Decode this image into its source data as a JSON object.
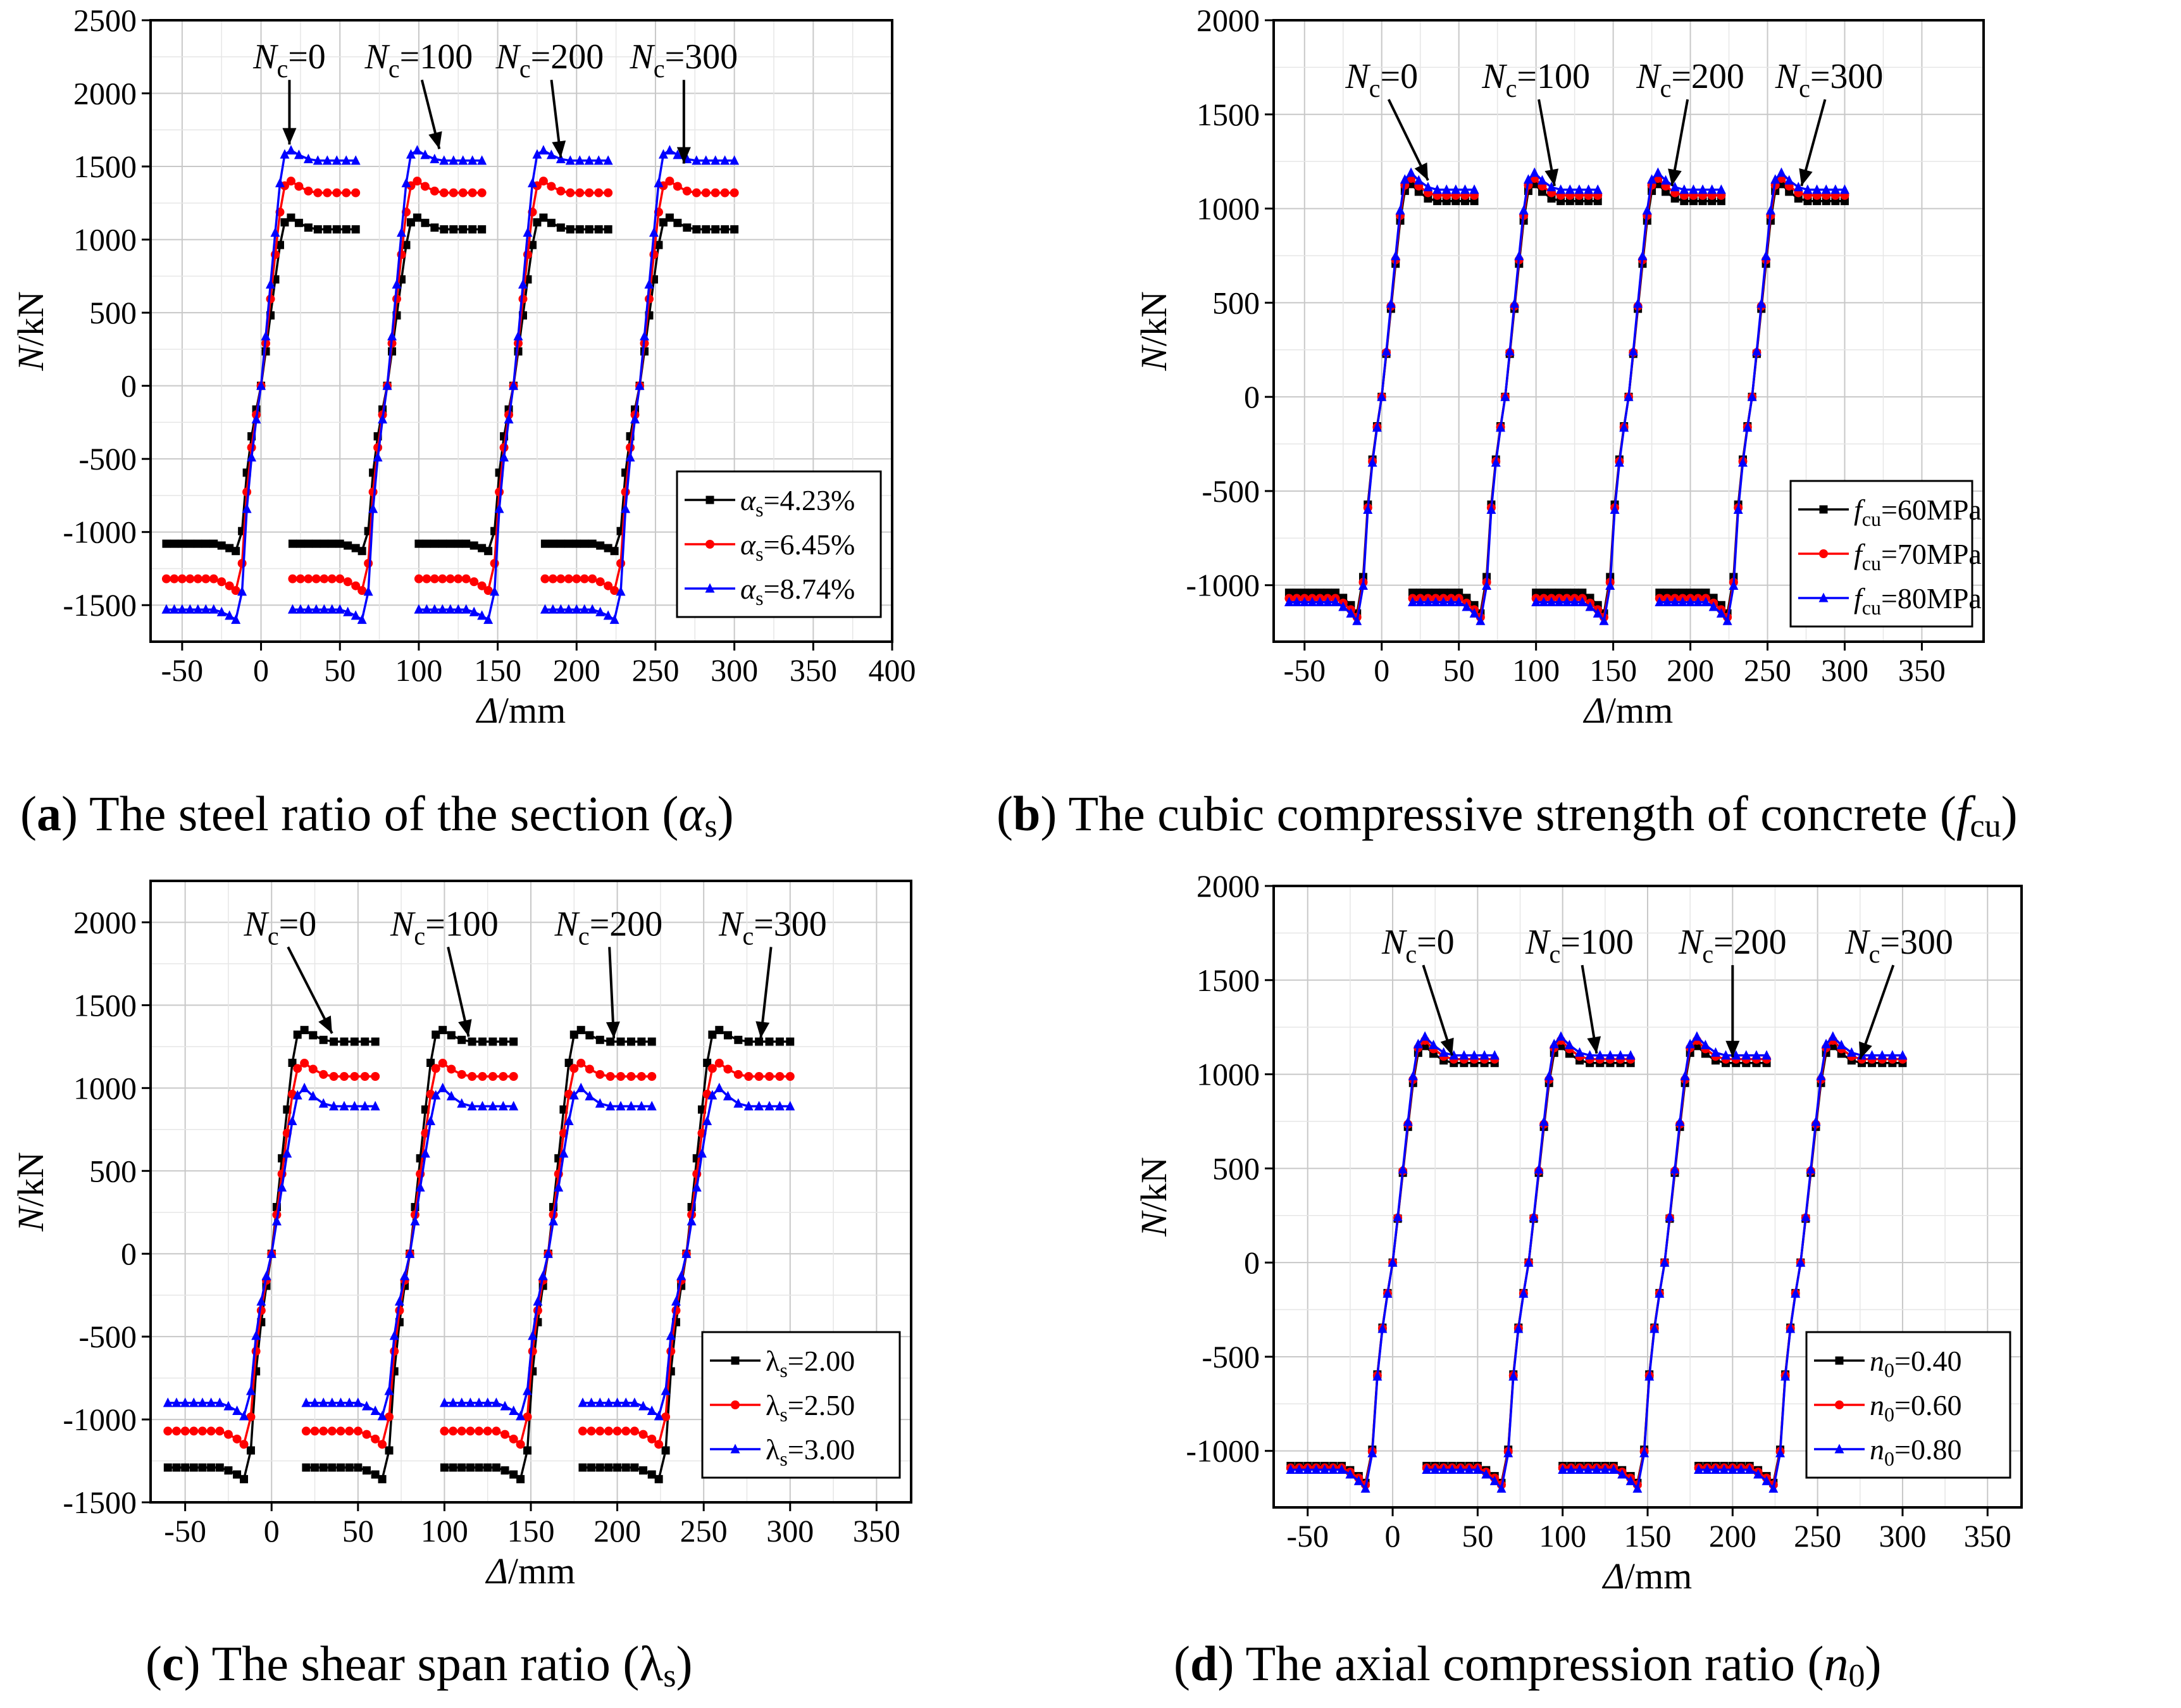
{
  "figure": {
    "panels": [
      {
        "id": "a",
        "caption": {
          "letter": "(a)",
          "text": " The steel ratio of the section (",
          "symbol": "α",
          "sub": "s",
          "close": ")"
        },
        "ylabel": {
          "italic": "N",
          "rest": "/kN"
        },
        "xlabel": {
          "italic": "Δ",
          "rest": "/mm"
        },
        "legend_symbol": "α",
        "legend_symbol_italic": true,
        "legend_sub": "s"
      },
      {
        "id": "b",
        "caption": {
          "letter": "(b)",
          "text": " The cubic compressive strength of concrete (",
          "symbol": "f",
          "sub": "cu",
          "close": ")"
        },
        "ylabel": {
          "italic": "N",
          "rest": "/kN"
        },
        "xlabel": {
          "italic": "Δ",
          "rest": "/mm"
        },
        "legend_symbol": "f",
        "legend_symbol_italic": true,
        "legend_sub": "cu"
      },
      {
        "id": "c",
        "caption": {
          "letter": "(c)",
          "text": " The shear span ratio (",
          "symbol": "λ",
          "sub": "s",
          "close": ")"
        },
        "ylabel": {
          "italic": "N",
          "rest": "/kN"
        },
        "xlabel": {
          "italic": "Δ",
          "rest": "/mm"
        },
        "legend_symbol": "λ",
        "legend_symbol_italic": false,
        "legend_sub": "s"
      },
      {
        "id": "d",
        "caption": {
          "letter": "(d)",
          "text": " The axial compression ratio (",
          "symbol": "n",
          "sub": "0",
          "close": ")"
        },
        "ylabel": {
          "italic": "N",
          "rest": "/kN"
        },
        "xlabel": {
          "italic": "Δ",
          "rest": "/mm"
        },
        "legend_symbol": "n",
        "legend_symbol_italic": true,
        "legend_sub": "0"
      }
    ],
    "annotation": {
      "symbol": "N",
      "sub": "c",
      "labels": [
        "=0",
        "=100",
        "=200",
        "=300"
      ]
    }
  },
  "chart_data": [
    {
      "type": "line",
      "panel": "a",
      "xlim": [
        -70,
        400
      ],
      "ylim": [
        -1750,
        2500
      ],
      "xticks": [
        -50,
        0,
        50,
        100,
        150,
        200,
        250,
        300,
        350,
        400
      ],
      "yticks": [
        -1500,
        -1000,
        -500,
        0,
        500,
        1000,
        1500,
        2000,
        2500
      ],
      "xtick_labels": [
        "-50",
        "0",
        "50",
        "100",
        "150",
        "200",
        "250",
        "300",
        "350",
        "400"
      ],
      "ytick_labels": [
        "-1500",
        "-1000",
        "-500",
        "0",
        "500",
        "1000",
        "1500",
        "2000",
        "2500"
      ],
      "offsets": [
        0,
        80,
        160,
        240
      ],
      "annotations": [
        {
          "label": "Nc=0",
          "text": [
            18,
            2170
          ],
          "arrow_to": [
            18,
            1650
          ]
        },
        {
          "label": "Nc=100",
          "text": [
            100,
            2170
          ],
          "arrow_to": [
            113,
            1620
          ]
        },
        {
          "label": "Nc=200",
          "text": [
            183,
            2170
          ],
          "arrow_to": [
            190,
            1560
          ]
        },
        {
          "label": "Nc=300",
          "text": [
            268,
            2170
          ],
          "arrow_to": [
            268,
            1520
          ]
        }
      ],
      "series": [
        {
          "name": "4.23%",
          "color": "#000000",
          "marker": "square",
          "peak": 1150,
          "plateau": 1070,
          "neg_peak": -1130,
          "neg_plateau": -1080
        },
        {
          "name": "6.45%",
          "color": "#ff0000",
          "marker": "circle",
          "peak": 1400,
          "plateau": 1320,
          "neg_peak": -1400,
          "neg_plateau": -1320
        },
        {
          "name": "8.74%",
          "color": "#0000ff",
          "marker": "triangle",
          "peak": 1610,
          "plateau": 1540,
          "neg_peak": -1600,
          "neg_plateau": -1530
        }
      ]
    },
    {
      "type": "line",
      "panel": "b",
      "xlim": [
        -70,
        390
      ],
      "ylim": [
        -1300,
        2000
      ],
      "xticks": [
        -50,
        0,
        50,
        100,
        150,
        200,
        250,
        300,
        350
      ],
      "yticks": [
        -1000,
        -500,
        0,
        500,
        1000,
        1500,
        2000
      ],
      "xtick_labels": [
        "-50",
        "0",
        "50",
        "100",
        "150",
        "200",
        "250",
        "300",
        "350"
      ],
      "ytick_labels": [
        "-1000",
        "-500",
        "0",
        "500",
        "1000",
        "1500",
        "2000"
      ],
      "offsets": [
        0,
        80,
        160,
        240
      ],
      "annotations": [
        {
          "label": "Nc=0",
          "text": [
            0,
            1640
          ],
          "arrow_to": [
            30,
            1150
          ]
        },
        {
          "label": "Nc=100",
          "text": [
            100,
            1640
          ],
          "arrow_to": [
            112,
            1120
          ]
        },
        {
          "label": "Nc=200",
          "text": [
            200,
            1640
          ],
          "arrow_to": [
            188,
            1120
          ]
        },
        {
          "label": "Nc=300",
          "text": [
            290,
            1640
          ],
          "arrow_to": [
            272,
            1120
          ]
        }
      ],
      "series": [
        {
          "name": "60MPa",
          "color": "#000000",
          "marker": "square",
          "peak": 1130,
          "plateau": 1040,
          "neg_peak": -1150,
          "neg_plateau": -1040
        },
        {
          "name": "70MPa",
          "color": "#ff0000",
          "marker": "circle",
          "peak": 1160,
          "plateau": 1070,
          "neg_peak": -1170,
          "neg_plateau": -1070
        },
        {
          "name": "80MPa",
          "color": "#0000ff",
          "marker": "triangle",
          "peak": 1190,
          "plateau": 1100,
          "neg_peak": -1190,
          "neg_plateau": -1090
        }
      ]
    },
    {
      "type": "line",
      "panel": "c",
      "xlim": [
        -70,
        370
      ],
      "ylim": [
        -1500,
        2250
      ],
      "xticks": [
        -50,
        0,
        50,
        100,
        150,
        200,
        250,
        300,
        350
      ],
      "yticks": [
        -1500,
        -1000,
        -500,
        0,
        500,
        1000,
        1500,
        2000
      ],
      "xtick_labels": [
        "-50",
        "0",
        "50",
        "100",
        "150",
        "200",
        "250",
        "300",
        "350"
      ],
      "ytick_labels": [
        "-1500",
        "-1000",
        "-500",
        "0",
        "500",
        "1000",
        "1500",
        "2000"
      ],
      "offsets": [
        0,
        80,
        160,
        240
      ],
      "annotations": [
        {
          "label": "Nc=0",
          "text": [
            5,
            1920
          ],
          "arrow_to": [
            35,
            1330
          ]
        },
        {
          "label": "Nc=100",
          "text": [
            100,
            1920
          ],
          "arrow_to": [
            114,
            1310
          ]
        },
        {
          "label": "Nc=200",
          "text": [
            195,
            1920
          ],
          "arrow_to": [
            198,
            1300
          ]
        },
        {
          "label": "Nc=300",
          "text": [
            290,
            1920
          ],
          "arrow_to": [
            283,
            1300
          ]
        }
      ],
      "series": [
        {
          "name": "2.00",
          "color": "#000000",
          "marker": "square",
          "peak": 1350,
          "plateau": 1280,
          "neg_peak": -1360,
          "neg_plateau": -1290
        },
        {
          "name": "2.50",
          "color": "#ff0000",
          "marker": "circle",
          "peak": 1150,
          "plateau": 1070,
          "neg_peak": -1150,
          "neg_plateau": -1070
        },
        {
          "name": "3.00",
          "color": "#0000ff",
          "marker": "triangle",
          "peak": 1000,
          "plateau": 890,
          "neg_peak": -980,
          "neg_plateau": -900
        }
      ]
    },
    {
      "type": "line",
      "panel": "d",
      "xlim": [
        -70,
        370
      ],
      "ylim": [
        -1300,
        2000
      ],
      "xticks": [
        -50,
        0,
        50,
        100,
        150,
        200,
        250,
        300,
        350
      ],
      "yticks": [
        -1000,
        -500,
        0,
        500,
        1000,
        1500,
        2000
      ],
      "xtick_labels": [
        "-50",
        "0",
        "50",
        "100",
        "150",
        "200",
        "250",
        "300",
        "350"
      ],
      "ytick_labels": [
        "-1000",
        "-500",
        "0",
        "500",
        "1000",
        "1500",
        "2000"
      ],
      "offsets": [
        0,
        80,
        160,
        240
      ],
      "annotations": [
        {
          "label": "Nc=0",
          "text": [
            15,
            1640
          ],
          "arrow_to": [
            35,
            1100
          ]
        },
        {
          "label": "Nc=100",
          "text": [
            110,
            1640
          ],
          "arrow_to": [
            120,
            1110
          ]
        },
        {
          "label": "Nc=200",
          "text": [
            200,
            1640
          ],
          "arrow_to": [
            200,
            1090
          ]
        },
        {
          "label": "Nc=300",
          "text": [
            298,
            1640
          ],
          "arrow_to": [
            275,
            1080
          ]
        }
      ],
      "series": [
        {
          "name": "0.40",
          "color": "#000000",
          "marker": "square",
          "peak": 1150,
          "plateau": 1060,
          "neg_peak": -1170,
          "neg_plateau": -1080
        },
        {
          "name": "0.60",
          "color": "#ff0000",
          "marker": "circle",
          "peak": 1180,
          "plateau": 1080,
          "neg_peak": -1180,
          "neg_plateau": -1090
        },
        {
          "name": "0.80",
          "color": "#0000ff",
          "marker": "triangle",
          "peak": 1200,
          "plateau": 1100,
          "neg_peak": -1200,
          "neg_plateau": -1100
        }
      ]
    }
  ]
}
